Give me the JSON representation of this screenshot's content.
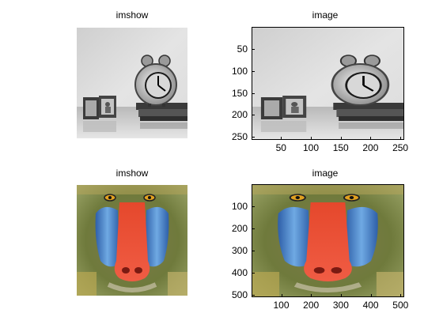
{
  "chart_data": [
    {
      "type": "image",
      "title": "imshow",
      "content": "grayscale clock on books with photo frames",
      "axes_visible": false
    },
    {
      "type": "image",
      "title": "image",
      "content": "grayscale clock on books with photo frames",
      "axes_visible": true,
      "xlim": [
        0.5,
        256.5
      ],
      "ylim": [
        0.5,
        256.5
      ],
      "xticks": [
        50,
        100,
        150,
        200,
        250
      ],
      "yticks": [
        50,
        100,
        150,
        200,
        250
      ],
      "xtick_labels": [
        "50",
        "100",
        "150",
        "200",
        "250"
      ],
      "ytick_labels": [
        "50",
        "100",
        "150",
        "200",
        "250"
      ]
    },
    {
      "type": "image",
      "title": "imshow",
      "content": "color mandrill face",
      "axes_visible": false
    },
    {
      "type": "image",
      "title": "image",
      "content": "color mandrill face",
      "axes_visible": true,
      "xlim": [
        0.5,
        512.5
      ],
      "ylim": [
        0.5,
        512.5
      ],
      "xticks": [
        100,
        200,
        300,
        400,
        500
      ],
      "yticks": [
        100,
        200,
        300,
        400,
        500
      ],
      "xtick_labels": [
        "100",
        "200",
        "300",
        "400",
        "500"
      ],
      "ytick_labels": [
        "100",
        "200",
        "300",
        "400",
        "500"
      ]
    }
  ]
}
